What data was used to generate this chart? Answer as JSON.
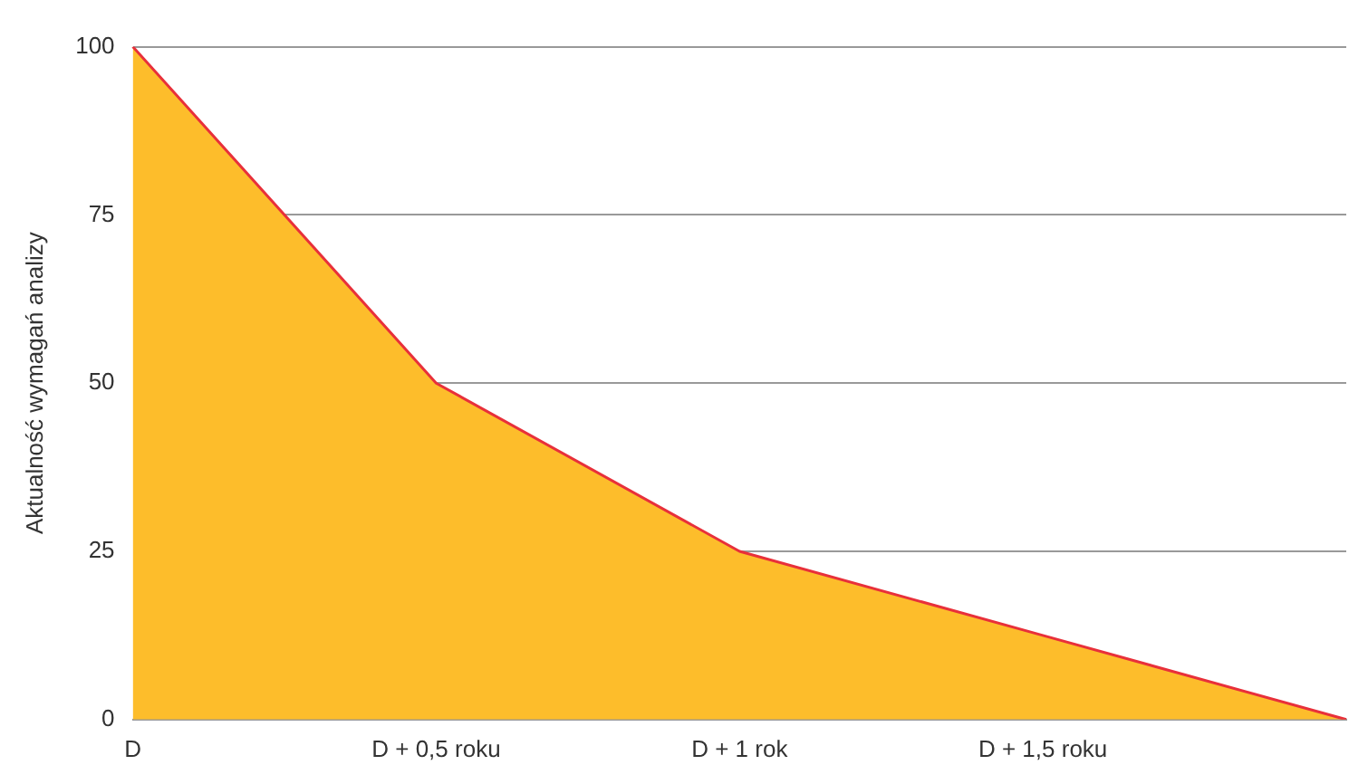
{
  "chart_data": {
    "type": "area",
    "ylabel": "Aktualność wymagań analizy",
    "categories": [
      "D",
      "D + 0,5 roku",
      "D + 1 rok",
      "D + 1,5 roku",
      null
    ],
    "series": [
      {
        "color": "#fdbd2b",
        "values": [
          100,
          50,
          25,
          12.5,
          0
        ]
      }
    ],
    "ylim": [
      0,
      100
    ],
    "yticks": [
      0,
      25,
      50,
      75,
      100
    ],
    "grid": "y",
    "legend": false
  }
}
